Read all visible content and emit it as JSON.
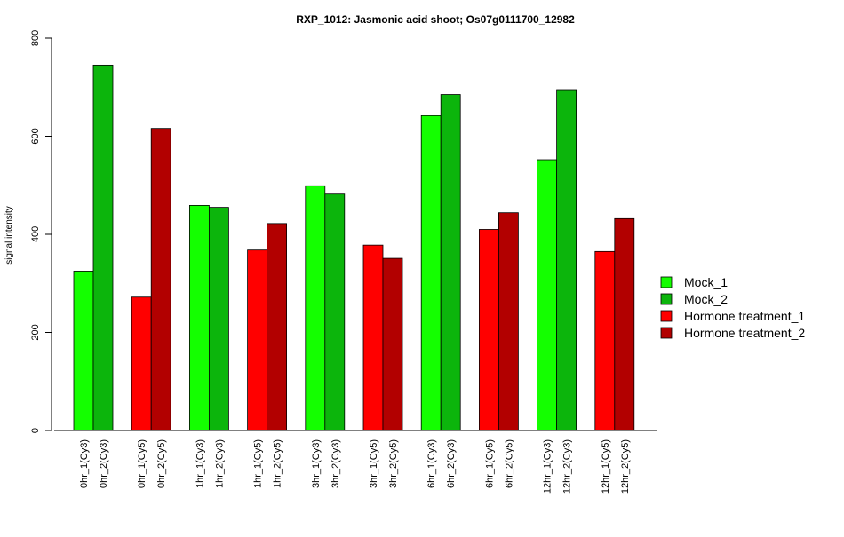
{
  "chart_data": {
    "type": "bar",
    "title": "RXP_1012: Jasmonic acid shoot; Os07g0111700_12982",
    "xlabel": "",
    "ylabel": "signal intensity",
    "ylim": [
      0,
      800
    ],
    "yticks": [
      0,
      200,
      400,
      600,
      800
    ],
    "grid": false,
    "legend_position": "right",
    "series_styles": {
      "Mock_1": "#14ff00",
      "Mock_2": "#0cb50c",
      "Hormone treatment_1": "#ff0000",
      "Hormone treatment_2": "#b20000"
    },
    "legend": [
      {
        "name": "Mock_1",
        "color": "#14ff00"
      },
      {
        "name": "Mock_2",
        "color": "#0cb50c"
      },
      {
        "name": "Hormone treatment_1",
        "color": "#ff0000"
      },
      {
        "name": "Hormone treatment_2",
        "color": "#b20000"
      }
    ],
    "groups": [
      {
        "bars": [
          {
            "label": "0hr_1(Cy3)",
            "value": 325,
            "series": "Mock_1"
          },
          {
            "label": "0hr_2(Cy3)",
            "value": 745,
            "series": "Mock_2"
          }
        ]
      },
      {
        "bars": [
          {
            "label": "0hr_1(Cy5)",
            "value": 272,
            "series": "Hormone treatment_1"
          },
          {
            "label": "0hr_2(Cy5)",
            "value": 616,
            "series": "Hormone treatment_2"
          }
        ]
      },
      {
        "bars": [
          {
            "label": "1hr_1(Cy3)",
            "value": 459,
            "series": "Mock_1"
          },
          {
            "label": "1hr_2(Cy3)",
            "value": 455,
            "series": "Mock_2"
          }
        ]
      },
      {
        "bars": [
          {
            "label": "1hr_1(Cy5)",
            "value": 368,
            "series": "Hormone treatment_1"
          },
          {
            "label": "1hr_2(Cy5)",
            "value": 422,
            "series": "Hormone treatment_2"
          }
        ]
      },
      {
        "bars": [
          {
            "label": "3hr_1(Cy3)",
            "value": 499,
            "series": "Mock_1"
          },
          {
            "label": "3hr_2(Cy3)",
            "value": 482,
            "series": "Mock_2"
          }
        ]
      },
      {
        "bars": [
          {
            "label": "3hr_1(Cy5)",
            "value": 378,
            "series": "Hormone treatment_1"
          },
          {
            "label": "3hr_2(Cy5)",
            "value": 351,
            "series": "Hormone treatment_2"
          }
        ]
      },
      {
        "bars": [
          {
            "label": "6hr_1(Cy3)",
            "value": 642,
            "series": "Mock_1"
          },
          {
            "label": "6hr_2(Cy3)",
            "value": 685,
            "series": "Mock_2"
          }
        ]
      },
      {
        "bars": [
          {
            "label": "6hr_1(Cy5)",
            "value": 410,
            "series": "Hormone treatment_1"
          },
          {
            "label": "6hr_2(Cy5)",
            "value": 444,
            "series": "Hormone treatment_2"
          }
        ]
      },
      {
        "bars": [
          {
            "label": "12hr_1(Cy3)",
            "value": 552,
            "series": "Mock_1"
          },
          {
            "label": "12hr_2(Cy3)",
            "value": 695,
            "series": "Mock_2"
          }
        ]
      },
      {
        "bars": [
          {
            "label": "12hr_1(Cy5)",
            "value": 365,
            "series": "Hormone treatment_1"
          },
          {
            "label": "12hr_2(Cy5)",
            "value": 432,
            "series": "Hormone treatment_2"
          }
        ]
      }
    ]
  }
}
